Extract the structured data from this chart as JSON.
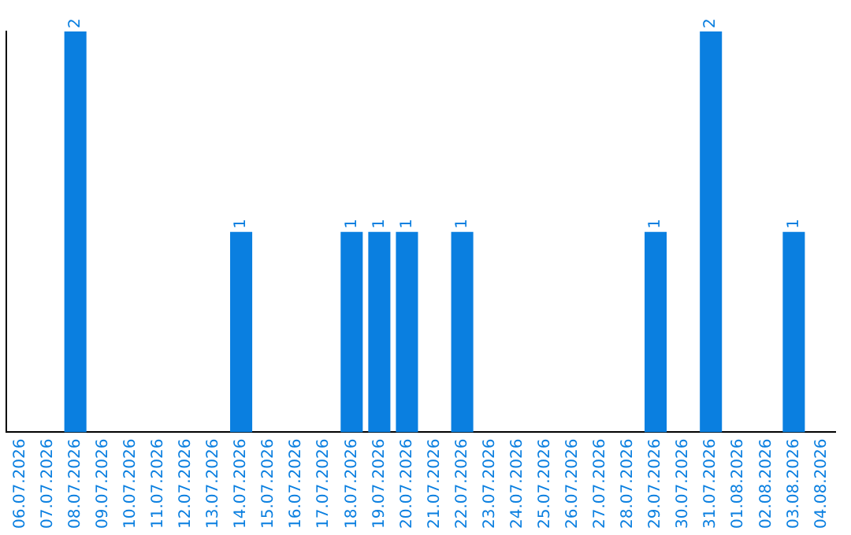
{
  "chart_data": {
    "type": "bar",
    "categories": [
      "06.07.2026",
      "07.07.2026",
      "08.07.2026",
      "09.07.2026",
      "10.07.2026",
      "11.07.2026",
      "12.07.2026",
      "13.07.2026",
      "14.07.2026",
      "15.07.2026",
      "16.07.2026",
      "17.07.2026",
      "18.07.2026",
      "19.07.2026",
      "20.07.2026",
      "21.07.2026",
      "22.07.2026",
      "23.07.2026",
      "24.07.2026",
      "25.07.2026",
      "26.07.2026",
      "27.07.2026",
      "28.07.2026",
      "29.07.2026",
      "30.07.2026",
      "31.07.2026",
      "01.08.2026",
      "02.08.2026",
      "03.08.2026",
      "04.08.2026"
    ],
    "values": [
      0,
      0,
      2,
      0,
      0,
      0,
      0,
      0,
      1,
      0,
      0,
      0,
      1,
      1,
      1,
      0,
      1,
      0,
      0,
      0,
      0,
      0,
      0,
      1,
      0,
      2,
      0,
      0,
      1,
      0
    ],
    "value_labels": [
      null,
      null,
      "2",
      null,
      null,
      null,
      null,
      null,
      "1",
      null,
      null,
      null,
      "1",
      "1",
      "1",
      null,
      "1",
      null,
      null,
      null,
      null,
      null,
      null,
      "1",
      null,
      "2",
      null,
      null,
      "1",
      null
    ],
    "color": "#0a7fe0",
    "tick_labels": "x",
    "grid": false,
    "legend": false
  }
}
